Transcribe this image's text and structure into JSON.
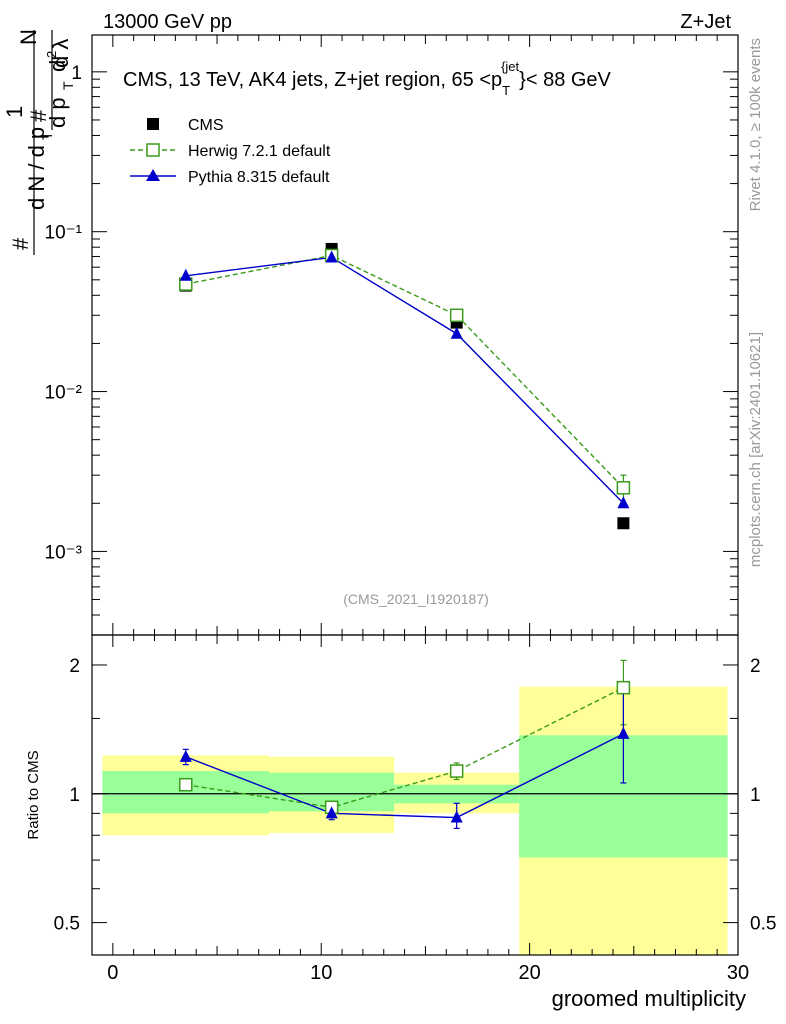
{
  "header": {
    "left_label": "13000 GeV pp",
    "right_label": "Z+Jet"
  },
  "side_labels": {
    "rivet": "Rivet 4.1.0, ≥ 100k events",
    "mcplots": "mcplots.cern.ch [arXiv:2401.10621]"
  },
  "chart_data": [
    {
      "type": "scatter",
      "title": "CMS, 13 TeV, AK4 jets, Z+jet region, 65 <p_T^{jet}< 88 GeV",
      "ylabel": "1/(dN/dp_T) d^2N/(dp_T dλ)",
      "yscale": "log",
      "ylim": [
        0.0003,
        1.7
      ],
      "xlim": [
        -1,
        30
      ],
      "watermark": "(CMS_2021_I1920187)",
      "yticks": [
        {
          "v": 1,
          "label": "1"
        },
        {
          "v": 0.1,
          "label": "10⁻¹"
        },
        {
          "v": 0.01,
          "label": "10⁻²"
        },
        {
          "v": 0.001,
          "label": "10⁻³"
        }
      ],
      "legend": {
        "position": "top-left",
        "entries": [
          "CMS",
          "Herwig 7.2.1 default",
          "Pythia 8.315 default"
        ]
      },
      "series": [
        {
          "name": "CMS",
          "color": "#000000",
          "marker": "square-filled",
          "x": [
            3.5,
            10.5,
            16.5,
            24.5
          ],
          "values": [
            0.046,
            0.078,
            0.027,
            0.0015
          ]
        },
        {
          "name": "Herwig 7.2.1 default",
          "color": "#3a9a1a",
          "marker": "square-open",
          "line": "dashed",
          "x": [
            3.5,
            10.5,
            16.5,
            24.5
          ],
          "values": [
            0.047,
            0.071,
            0.03,
            0.0025
          ]
        },
        {
          "name": "Pythia 8.315 default",
          "color": "#0000cc",
          "marker": "triangle-filled",
          "line": "solid",
          "x": [
            3.5,
            10.5,
            16.5,
            24.5
          ],
          "values": [
            0.053,
            0.069,
            0.023,
            0.002
          ]
        }
      ]
    },
    {
      "type": "scatter",
      "ylabel": "Ratio to CMS",
      "xlabel": "groomed multiplicity",
      "yscale": "log",
      "ylim": [
        0.42,
        2.35
      ],
      "xlim": [
        -1,
        30
      ],
      "xticks": [
        0,
        10,
        20,
        30
      ],
      "yticks": [
        {
          "v": 0.5,
          "label": "0.5"
        },
        {
          "v": 1,
          "label": "1"
        },
        {
          "v": 2,
          "label": "2"
        }
      ],
      "bins": [
        [
          -0.5,
          7.5
        ],
        [
          7.5,
          13.5
        ],
        [
          13.5,
          19.5
        ],
        [
          19.5,
          29.5
        ]
      ],
      "band_stat_lo": [
        0.9,
        0.91,
        0.95,
        0.71
      ],
      "band_stat_hi": [
        1.13,
        1.12,
        1.05,
        1.37
      ],
      "band_tot_lo": [
        0.8,
        0.81,
        0.9,
        0.42
      ],
      "band_tot_hi": [
        1.23,
        1.22,
        1.12,
        1.78
      ],
      "series": [
        {
          "name": "Herwig 7.2.1 default",
          "color": "#3a9a1a",
          "x": [
            3.5,
            10.5,
            16.5,
            24.5
          ],
          "values": [
            1.05,
            0.93,
            1.13,
            1.77
          ],
          "err_lo": [
            1.02,
            0.91,
            1.08,
            1.45
          ],
          "err_hi": [
            1.08,
            0.96,
            1.18,
            2.05
          ]
        },
        {
          "name": "Pythia 8.315 default",
          "color": "#0000cc",
          "x": [
            3.5,
            10.5,
            16.5,
            24.5
          ],
          "values": [
            1.22,
            0.9,
            0.88,
            1.38
          ],
          "err_lo": [
            1.17,
            0.87,
            0.83,
            1.06
          ],
          "err_hi": [
            1.27,
            0.94,
            0.95,
            1.75
          ]
        }
      ]
    }
  ]
}
